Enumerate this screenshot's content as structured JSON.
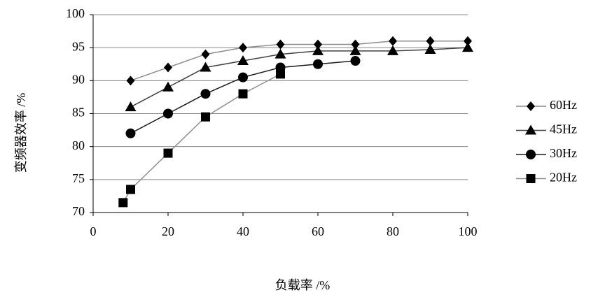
{
  "chart_data": {
    "type": "line",
    "xlabel": "负载率 /%",
    "ylabel": "变频器效率 /%",
    "xlim": [
      0,
      100
    ],
    "xticks": [
      0,
      20,
      40,
      60,
      80,
      100
    ],
    "ylim": [
      70,
      100
    ],
    "yticks": [
      70,
      75,
      80,
      85,
      90,
      95,
      100
    ],
    "grid": true,
    "legend": "right",
    "series": [
      {
        "name": "60Hz",
        "color": "#8c8c8c",
        "marker": "diamond",
        "x": [
          10,
          20,
          30,
          40,
          50,
          60,
          70,
          80,
          90,
          100
        ],
        "values": [
          90,
          92,
          94,
          95,
          95.5,
          95.5,
          95.5,
          96,
          96,
          96
        ]
      },
      {
        "name": "45Hz",
        "color": "#404040",
        "marker": "triangle",
        "x": [
          10,
          20,
          30,
          40,
          50,
          60,
          70,
          80,
          90,
          100
        ],
        "values": [
          86,
          89,
          92,
          93,
          94,
          94.5,
          94.5,
          94.5,
          94.7,
          95
        ]
      },
      {
        "name": "30Hz",
        "color": "#1a1a1a",
        "marker": "circle",
        "x": [
          10,
          20,
          30,
          40,
          50,
          60,
          70
        ],
        "values": [
          82,
          85,
          88,
          90.5,
          92,
          92.5,
          93
        ]
      },
      {
        "name": "20Hz",
        "color": "#909090",
        "marker": "square",
        "x": [
          8,
          10,
          20,
          30,
          40,
          50
        ],
        "values": [
          71.5,
          73.5,
          79,
          84.5,
          88,
          91
        ]
      }
    ]
  }
}
